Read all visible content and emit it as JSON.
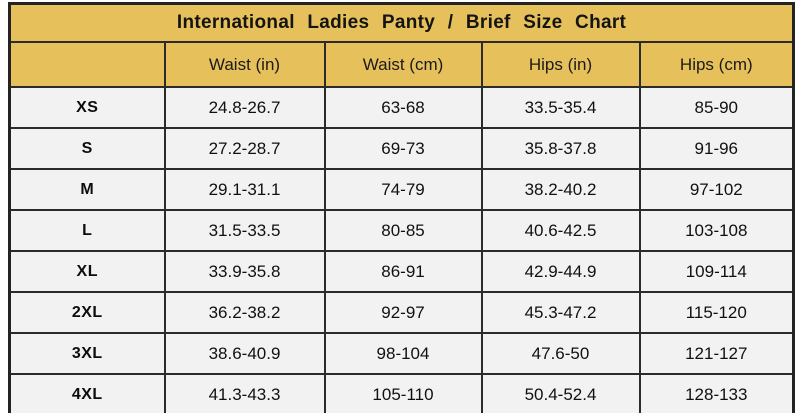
{
  "title": "International Ladies Panty / Brief Size Chart",
  "colors": {
    "header_gold": "#e6c05a",
    "row_background": "#f2f2f2",
    "border": "#2b2b2b",
    "text": "#101010"
  },
  "chart_data": {
    "type": "table",
    "title": "International  Ladies  Panty  /  Brief Size  Chart",
    "header_cells": [
      "",
      "Waist (in)",
      "Waist (cm)",
      "Hips (in)",
      "Hips (cm)"
    ],
    "rows": [
      [
        "XS",
        "24.8-26.7",
        "63-68",
        "33.5-35.4",
        "85-90"
      ],
      [
        "S",
        "27.2-28.7",
        "69-73",
        "35.8-37.8",
        "91-96"
      ],
      [
        "M",
        "29.1-31.1",
        "74-79",
        "38.2-40.2",
        "97-102"
      ],
      [
        "L",
        "31.5-33.5",
        "80-85",
        "40.6-42.5",
        "103-108"
      ],
      [
        "XL",
        "33.9-35.8",
        "86-91",
        "42.9-44.9",
        "109-114"
      ],
      [
        "2XL",
        "36.2-38.2",
        "92-97",
        "45.3-47.2",
        "115-120"
      ],
      [
        "3XL",
        "38.6-40.9",
        "98-104",
        "47.6-50",
        "121-127"
      ],
      [
        "4XL",
        "41.3-43.3",
        "105-110",
        "50.4-52.4",
        "128-133"
      ]
    ]
  }
}
